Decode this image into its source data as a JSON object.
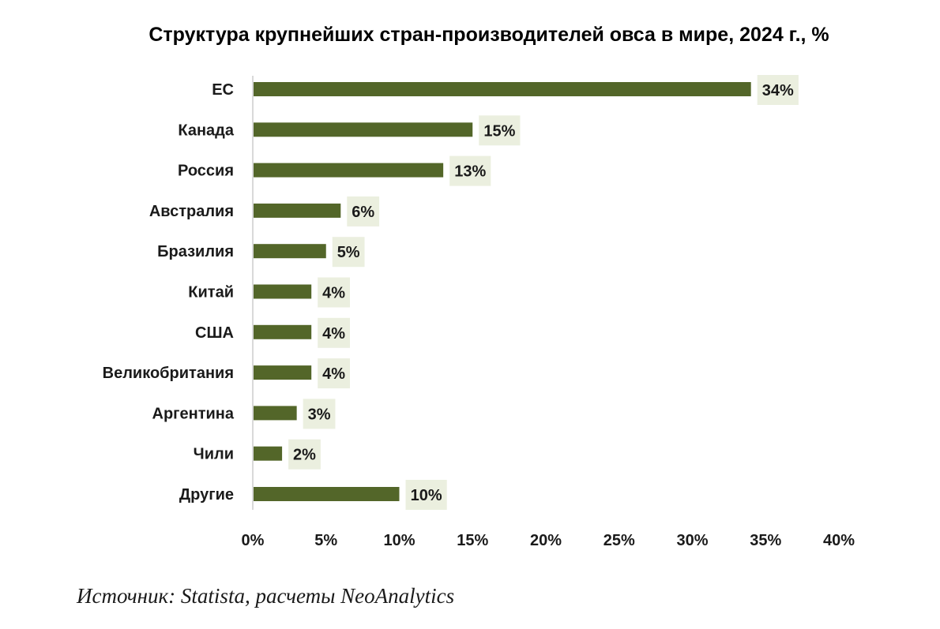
{
  "chart_data": {
    "type": "bar",
    "orientation": "horizontal",
    "title": "Структура крупнейших стран-производителей овса в мире, 2024 г., %",
    "categories": [
      "ЕС",
      "Канада",
      "Россия",
      "Австралия",
      "Бразилия",
      "Китай",
      "США",
      "Великобритания",
      "Аргентина",
      "Чили",
      "Другие"
    ],
    "values": [
      34,
      15,
      13,
      6,
      5,
      4,
      4,
      4,
      3,
      2,
      10
    ],
    "data_labels": [
      "34%",
      "15%",
      "13%",
      "6%",
      "5%",
      "4%",
      "4%",
      "4%",
      "3%",
      "2%",
      "10%"
    ],
    "xlim": [
      0,
      40
    ],
    "x_ticks": [
      0,
      5,
      10,
      15,
      20,
      25,
      30,
      35,
      40
    ],
    "x_tick_labels": [
      "0%",
      "5%",
      "10%",
      "15%",
      "20%",
      "25%",
      "30%",
      "35%",
      "40%"
    ],
    "grid": false,
    "legend": "none",
    "colors": {
      "bar": "#536629",
      "label_background": "#ebefdf",
      "axis": "#d9d9d9"
    }
  },
  "source": "Источник: Statista, расчеты NeoAnalytics"
}
